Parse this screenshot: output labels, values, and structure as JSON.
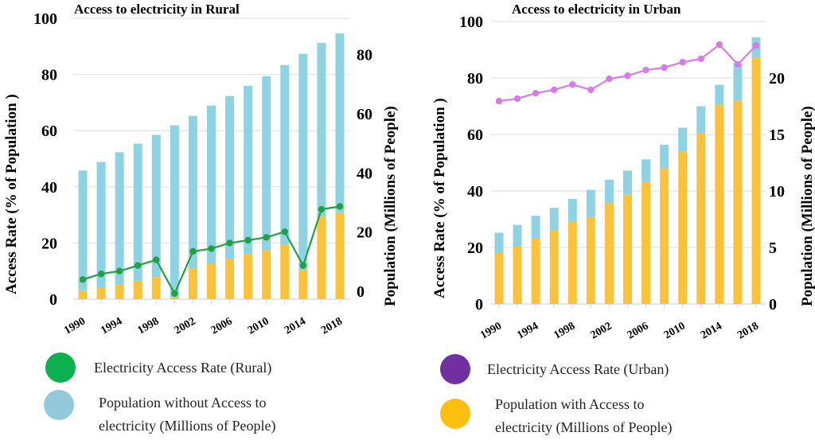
{
  "chart_data": [
    {
      "type": "bar",
      "id": "rural",
      "title": "Access to electricity in Rural",
      "ylabel": "Access Rate (% of Population )",
      "y2label": "Population (Millions of People)",
      "ylim": [
        0,
        100
      ],
      "y2lim": [
        0,
        95
      ],
      "yticks": [
        0,
        20,
        40,
        60,
        80,
        100
      ],
      "y2ticks": [
        0,
        20,
        40,
        60,
        80
      ],
      "grid": true,
      "categories": [
        1990,
        1992,
        1994,
        1996,
        1998,
        2000,
        2002,
        2004,
        2006,
        2008,
        2010,
        2012,
        2014,
        2016,
        2018
      ],
      "xtick_labels": [
        "1990",
        "1994",
        "1998",
        "2002",
        "2006",
        "2010",
        "2014",
        "2018"
      ],
      "series": [
        {
          "name": "Population with Access to electricity (Millions of People)",
          "type": "stacked-bar",
          "axis": "right",
          "color": "#fcc23a",
          "values": [
            3.0,
            4.0,
            5.1,
            6.2,
            7.5,
            0.8,
            10.5,
            12.1,
            13.7,
            15.3,
            16.6,
            18.5,
            9.7,
            27.9,
            29.3
          ]
        },
        {
          "name": "Population without Access to electricity (Millions of People)",
          "type": "stacked-bar",
          "axis": "right",
          "color": "#8ed3e3",
          "values": [
            40.5,
            42.4,
            44.6,
            46.4,
            48.1,
            58.0,
            51.5,
            53.4,
            55.0,
            56.9,
            58.8,
            60.7,
            73.3,
            58.8,
            60.6
          ]
        },
        {
          "name": "Electricity Access Rate (Rural)",
          "type": "line",
          "axis": "left",
          "color": "#22a045",
          "values": [
            7,
            9,
            10,
            12,
            14,
            2,
            17,
            18,
            20,
            21,
            22,
            24,
            12,
            32,
            33
          ]
        }
      ],
      "legend": [
        {
          "label": "Electricity Access Rate (Rural)",
          "color": "#0bb04f"
        },
        {
          "label_line1": "Population without Access to",
          "label_line2": "electricity (Millions of People)",
          "color": "#93cadb"
        }
      ]
    },
    {
      "type": "bar",
      "id": "urban",
      "title": "Access to electricity in Urban",
      "ylabel": "Access Rate (% of Population )",
      "y2label": "Population (Millions of People)",
      "ylim": [
        0,
        100
      ],
      "y2lim": [
        0,
        25
      ],
      "yticks": [
        0,
        20,
        40,
        60,
        80,
        100
      ],
      "y2ticks": [
        0,
        5,
        10,
        15,
        20
      ],
      "grid": true,
      "categories": [
        1990,
        1992,
        1994,
        1996,
        1998,
        2000,
        2002,
        2004,
        2006,
        2008,
        2010,
        2012,
        2014,
        2016,
        2018
      ],
      "xtick_labels": [
        "1990",
        "1994",
        "1998",
        "2002",
        "2006",
        "2010",
        "2014",
        "2018"
      ],
      "series": [
        {
          "name": "Population with Access to electricity (Millions of People)",
          "type": "stacked-bar",
          "axis": "right",
          "color": "#fcc23a",
          "values": [
            4.5,
            5.1,
            5.8,
            6.5,
            7.3,
            7.7,
            8.9,
            9.7,
            10.8,
            12.0,
            13.5,
            15.1,
            17.6,
            18.0,
            21.8
          ]
        },
        {
          "name": "Population without Access to electricity (Millions of People)",
          "type": "stacked-bar",
          "axis": "right",
          "color": "#8ed3e3",
          "values": [
            1.8,
            1.9,
            2.0,
            2.0,
            2.0,
            2.4,
            2.1,
            2.1,
            2.0,
            2.1,
            2.1,
            2.4,
            1.8,
            3.3,
            1.8
          ]
        },
        {
          "name": "Electricity Access Rate (Urban)",
          "type": "line",
          "axis": "left",
          "color": "#d77ce6",
          "values": [
            71.8,
            72.7,
            74.6,
            75.8,
            77.7,
            75.8,
            79.7,
            80.8,
            82.8,
            83.7,
            85.6,
            86.8,
            91.8,
            84.8,
            91.5
          ]
        }
      ],
      "legend": [
        {
          "label": "Electricity Access Rate (Urban)",
          "color": "#7030a0"
        },
        {
          "label_line1": "Population with  Access to",
          "label_line2": "electricity (Millions of People)",
          "color": "#fdc010"
        }
      ]
    }
  ]
}
